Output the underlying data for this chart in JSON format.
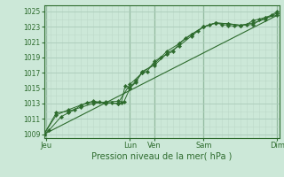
{
  "xlabel": "Pression niveau de la mer( hPa )",
  "bg_color": "#cce8d8",
  "plot_bg_color": "#cce8d8",
  "grid_major_color": "#aacbba",
  "grid_minor_color": "#bcd8c8",
  "line_color": "#2d6b2d",
  "tick_color": "#2d6b2d",
  "ylim": [
    1008.5,
    1025.8
  ],
  "yticks": [
    1009,
    1011,
    1013,
    1015,
    1017,
    1019,
    1021,
    1023,
    1025
  ],
  "xlim": [
    0,
    9.6
  ],
  "day_labels": [
    "Jeu",
    "Lun",
    "Ven",
    "Sam",
    "Dim"
  ],
  "day_positions": [
    0.1,
    3.5,
    4.5,
    6.5,
    9.5
  ],
  "series1_x": [
    0.0,
    0.2,
    0.7,
    1.0,
    1.25,
    1.5,
    1.75,
    2.0,
    2.25,
    2.5,
    2.75,
    3.0,
    3.15,
    3.3,
    3.5,
    3.75,
    4.0,
    4.2,
    4.5,
    4.75,
    5.0,
    5.25,
    5.5,
    5.75,
    6.0,
    6.25,
    6.5,
    6.75,
    7.0,
    7.25,
    7.5,
    7.75,
    8.0,
    8.25,
    8.5,
    8.75,
    9.0,
    9.25,
    9.5
  ],
  "series1_y": [
    1009.0,
    1009.5,
    1011.3,
    1011.8,
    1012.2,
    1012.8,
    1013.1,
    1013.3,
    1013.2,
    1013.0,
    1013.1,
    1013.0,
    1013.1,
    1015.3,
    1015.1,
    1016.0,
    1017.0,
    1017.2,
    1018.5,
    1019.0,
    1019.4,
    1019.8,
    1020.8,
    1021.5,
    1022.0,
    1022.5,
    1023.0,
    1023.3,
    1023.5,
    1023.3,
    1023.2,
    1023.1,
    1023.2,
    1023.3,
    1023.8,
    1024.0,
    1024.2,
    1024.5,
    1025.0
  ],
  "series2_x": [
    0.0,
    0.5,
    1.0,
    1.5,
    2.0,
    2.5,
    3.0,
    3.25,
    3.5,
    3.75,
    4.0,
    4.5,
    5.0,
    5.5,
    6.0,
    6.5,
    7.0,
    7.5,
    8.0,
    8.5,
    9.0,
    9.5
  ],
  "series2_y": [
    1009.0,
    1011.8,
    1012.0,
    1012.5,
    1013.0,
    1013.2,
    1013.3,
    1013.2,
    1015.0,
    1015.8,
    1017.2,
    1018.0,
    1019.5,
    1020.5,
    1021.8,
    1023.0,
    1023.5,
    1023.4,
    1023.2,
    1023.5,
    1024.0,
    1024.8
  ],
  "series3_x": [
    0.0,
    0.5,
    1.0,
    1.5,
    2.0,
    2.5,
    3.0,
    3.5,
    4.0,
    4.5,
    5.0,
    5.5,
    6.0,
    6.5,
    7.0,
    7.5,
    8.0,
    8.5,
    9.0,
    9.5
  ],
  "series3_y": [
    1009.0,
    1011.5,
    1012.2,
    1012.8,
    1013.2,
    1013.1,
    1013.0,
    1015.5,
    1017.0,
    1018.2,
    1019.8,
    1020.8,
    1022.0,
    1023.0,
    1023.5,
    1023.4,
    1023.2,
    1023.3,
    1024.2,
    1024.5
  ],
  "trend_x": [
    0.0,
    9.5
  ],
  "trend_y": [
    1009.0,
    1024.5
  ]
}
